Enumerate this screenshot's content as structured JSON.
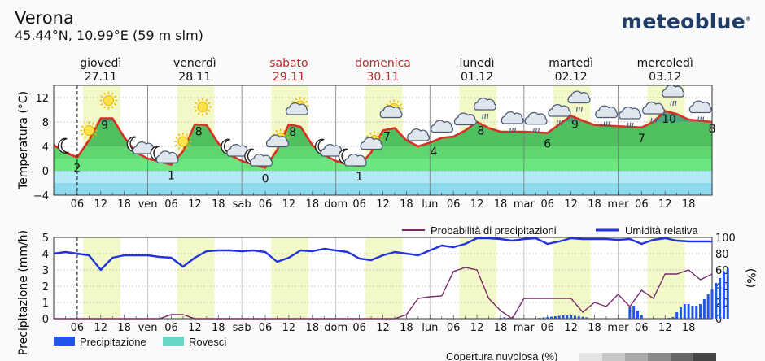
{
  "header": {
    "location": "Verona",
    "coordinates": "45.44°N, 10.99°E (59 m slm)",
    "logo": "meteoblue"
  },
  "days": [
    {
      "name": "giovedì",
      "date": "27.11",
      "weekend": false,
      "short": ""
    },
    {
      "name": "venerdì",
      "date": "28.11",
      "weekend": false,
      "short": "ven"
    },
    {
      "name": "sabato",
      "date": "29.11",
      "weekend": true,
      "short": "sab"
    },
    {
      "name": "domenica",
      "date": "30.11",
      "weekend": true,
      "short": "dom"
    },
    {
      "name": "lunedì",
      "date": "01.12",
      "weekend": false,
      "short": "lun"
    },
    {
      "name": "martedì",
      "date": "02.12",
      "weekend": false,
      "short": "mar"
    },
    {
      "name": "mercoledì",
      "date": "03.12",
      "weekend": false,
      "short": "mer"
    }
  ],
  "hour_ticks": [
    "06",
    "12",
    "18"
  ],
  "colors": {
    "weekend": "#b03030",
    "temp_line": "#d93025",
    "humidity": "#2233dd",
    "probability": "#7a2a6a",
    "precip": "#2255ee",
    "showers": "#66d8c8",
    "daylight": "#f3f8c8"
  },
  "chart_data": [
    {
      "type": "area",
      "ylabel": "Temperatura (°C)",
      "ylim": [
        -4,
        14
      ],
      "yticks": [
        -4,
        0,
        4,
        8,
        12
      ],
      "x_unit": "hours from giovedì 00:00, 3-hourly",
      "now_hour": 6,
      "temperature": [
        4.2,
        3.0,
        2.2,
        5.0,
        8.6,
        8.6,
        5.5,
        3.0,
        2.0,
        1.5,
        1.0,
        3.2,
        7.6,
        7.5,
        4.5,
        2.6,
        1.6,
        1.0,
        0.5,
        3.4,
        7.6,
        7.2,
        4.2,
        2.6,
        1.6,
        1.0,
        0.8,
        3.0,
        6.6,
        7.0,
        5.0,
        4.0,
        4.6,
        5.4,
        5.6,
        6.6,
        8.0,
        7.0,
        6.4,
        6.4,
        6.4,
        6.3,
        6.2,
        7.6,
        9.0,
        8.2,
        7.5,
        7.4,
        7.3,
        7.2,
        7.1,
        8.0,
        9.8,
        9.3,
        8.4,
        8.2,
        8.0
      ],
      "labels": [
        {
          "hour": 6,
          "value": "2"
        },
        {
          "hour": 13,
          "value": "9"
        },
        {
          "hour": 30,
          "value": "1"
        },
        {
          "hour": 37,
          "value": "8"
        },
        {
          "hour": 54,
          "value": "0"
        },
        {
          "hour": 61,
          "value": "8"
        },
        {
          "hour": 78,
          "value": "1"
        },
        {
          "hour": 85,
          "value": "7"
        },
        {
          "hour": 97,
          "value": "4"
        },
        {
          "hour": 109,
          "value": "8"
        },
        {
          "hour": 126,
          "value": "6"
        },
        {
          "hour": 133,
          "value": "9"
        },
        {
          "hour": 150,
          "value": "7"
        },
        {
          "hour": 157,
          "value": "10"
        },
        {
          "hour": 168,
          "value": "8"
        }
      ],
      "icons": [
        {
          "hour": 3,
          "type": "moon"
        },
        {
          "hour": 9,
          "type": "sun"
        },
        {
          "hour": 14,
          "type": "sun"
        },
        {
          "hour": 21,
          "type": "moon-cloud"
        },
        {
          "hour": 27,
          "type": "moon-cloud"
        },
        {
          "hour": 33,
          "type": "sun"
        },
        {
          "hour": 38,
          "type": "sun"
        },
        {
          "hour": 45,
          "type": "moon-cloud"
        },
        {
          "hour": 51,
          "type": "moon-cloud"
        },
        {
          "hour": 57,
          "type": "sun-cloud"
        },
        {
          "hour": 62,
          "type": "sun-cloud"
        },
        {
          "hour": 69,
          "type": "moon-cloud"
        },
        {
          "hour": 75,
          "type": "moon-cloud"
        },
        {
          "hour": 81,
          "type": "sun-cloud"
        },
        {
          "hour": 86,
          "type": "sun-cloud"
        },
        {
          "hour": 93,
          "type": "cloud"
        },
        {
          "hour": 99,
          "type": "cloud"
        },
        {
          "hour": 105,
          "type": "cloud"
        },
        {
          "hour": 110,
          "type": "cloud-rain"
        },
        {
          "hour": 117,
          "type": "cloud-rain"
        },
        {
          "hour": 123,
          "type": "cloud-rain"
        },
        {
          "hour": 129,
          "type": "cloud-rain"
        },
        {
          "hour": 134,
          "type": "cloud-rain"
        },
        {
          "hour": 141,
          "type": "cloud-rain"
        },
        {
          "hour": 147,
          "type": "cloud-rain"
        },
        {
          "hour": 153,
          "type": "cloud-rain"
        },
        {
          "hour": 158,
          "type": "cloud-rain"
        },
        {
          "hour": 165,
          "type": "cloud-rain"
        }
      ]
    },
    {
      "type": "line",
      "ylabel_left": "Precipitazione (mm/h)",
      "ylabel_right": "(%)",
      "ylim_left": [
        0,
        5
      ],
      "ylim_right": [
        0,
        100
      ],
      "yticks_left": [
        0,
        1,
        2,
        3,
        4,
        5
      ],
      "yticks_right": [
        0,
        20,
        40,
        60,
        80,
        100
      ],
      "legend_top": [
        "Probabilità di precipitazioni",
        "Umidità relativa"
      ],
      "legend_bottom": [
        "Precipitazione",
        "Rovesci"
      ],
      "humidity": [
        80,
        82,
        80,
        78,
        60,
        75,
        78,
        78,
        78,
        76,
        75,
        64,
        75,
        83,
        84,
        84,
        83,
        84,
        82,
        70,
        75,
        84,
        83,
        86,
        84,
        82,
        74,
        72,
        78,
        82,
        80,
        78,
        84,
        90,
        88,
        92,
        99,
        99,
        98,
        96,
        98,
        99,
        92,
        95,
        99,
        98,
        98,
        98,
        97,
        98,
        92,
        97,
        99,
        96,
        95,
        95,
        95
      ],
      "probability": [
        0,
        0,
        0,
        0,
        0,
        0,
        0,
        0,
        0,
        0,
        5,
        5,
        0,
        0,
        0,
        0,
        0,
        0,
        0,
        0,
        0,
        0,
        0,
        0,
        0,
        0,
        0,
        0,
        0,
        0,
        5,
        25,
        27,
        28,
        58,
        63,
        60,
        25,
        10,
        0,
        25,
        25,
        25,
        25,
        25,
        8,
        20,
        15,
        30,
        15,
        35,
        25,
        55,
        55,
        60,
        48,
        55
      ],
      "precipitation_hourly": [
        [
          114,
          0.05
        ],
        [
          115,
          0.08
        ],
        [
          116,
          0.05
        ],
        [
          124,
          0.05
        ],
        [
          125,
          0.08
        ],
        [
          126,
          0.1
        ],
        [
          127,
          0.12
        ],
        [
          128,
          0.15
        ],
        [
          129,
          0.18
        ],
        [
          130,
          0.2
        ],
        [
          131,
          0.2
        ],
        [
          132,
          0.2
        ],
        [
          133,
          0.18
        ],
        [
          134,
          0.15
        ],
        [
          135,
          0.1
        ],
        [
          136,
          0.08
        ],
        [
          147,
          0.7
        ],
        [
          148,
          0.8
        ],
        [
          149,
          0.5
        ],
        [
          150,
          0.2
        ],
        [
          157,
          0.05
        ],
        [
          158,
          0.1
        ],
        [
          159,
          0.4
        ],
        [
          160,
          0.7
        ],
        [
          161,
          0.9
        ],
        [
          162,
          0.9
        ],
        [
          163,
          0.8
        ],
        [
          164,
          0.8
        ],
        [
          165,
          0.9
        ],
        [
          166,
          1.2
        ],
        [
          167,
          1.5
        ],
        [
          168,
          1.8
        ],
        [
          169,
          2.2
        ],
        [
          170,
          2.5
        ],
        [
          171,
          2.9
        ],
        [
          172,
          3.1
        ]
      ]
    }
  ],
  "cloud_legend": {
    "label": "Copertura nuvolosa (%)"
  }
}
